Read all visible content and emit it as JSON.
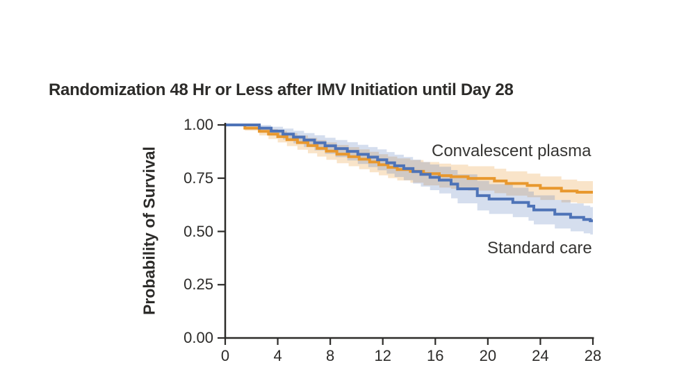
{
  "chart_data": {
    "type": "line",
    "variant": "kaplan_meier_step_curves_with_confidence_bands",
    "title": "Randomization 48 Hr or Less after IMV Initiation until Day 28",
    "ylabel": "Probability of Survival",
    "xlabel": "",
    "xlim": [
      0,
      28
    ],
    "ylim": [
      0,
      1
    ],
    "grid": false,
    "legend_position": "inline annotations next to curves",
    "xticks": {
      "values": [
        0,
        4,
        8,
        12,
        16,
        20,
        24,
        28
      ],
      "labels": [
        "0",
        "4",
        "8",
        "12",
        "16",
        "20",
        "24",
        "28"
      ]
    },
    "yticks": {
      "values": [
        1.0,
        0.75,
        0.5,
        0.25,
        0.0
      ],
      "labels": [
        "1.00",
        "0.75",
        "0.50",
        "0.25",
        "0.00"
      ]
    },
    "axis_color": "#2c2b29",
    "series": [
      {
        "name": "Convalescent plasma",
        "line_color": "#E8982E",
        "band_color": "rgba(232,152,46,0.26)",
        "end_value": 0.684,
        "steps": [
          [
            0,
            1.0
          ],
          [
            1.5,
            0.985
          ],
          [
            2.6,
            0.97
          ],
          [
            3.3,
            0.957
          ],
          [
            4.0,
            0.945
          ],
          [
            4.7,
            0.931
          ],
          [
            5.5,
            0.917
          ],
          [
            6.3,
            0.903
          ],
          [
            7.0,
            0.89
          ],
          [
            7.7,
            0.877
          ],
          [
            8.5,
            0.863
          ],
          [
            9.4,
            0.851
          ],
          [
            10.2,
            0.839
          ],
          [
            11.0,
            0.826
          ],
          [
            11.7,
            0.813
          ],
          [
            12.4,
            0.801
          ],
          [
            13.1,
            0.791
          ],
          [
            14.1,
            0.782
          ],
          [
            15.1,
            0.771
          ],
          [
            16.3,
            0.762
          ],
          [
            17.2,
            0.757
          ],
          [
            18.5,
            0.749
          ],
          [
            20.5,
            0.737
          ],
          [
            21.4,
            0.725
          ],
          [
            23.0,
            0.716
          ],
          [
            24.0,
            0.703
          ],
          [
            25.6,
            0.69
          ],
          [
            26.8,
            0.684
          ]
        ],
        "ci_halfwidth": [
          [
            0,
            0.003
          ],
          [
            1.5,
            0.012
          ],
          [
            3,
            0.022
          ],
          [
            5,
            0.032
          ],
          [
            8,
            0.042
          ],
          [
            12,
            0.05
          ],
          [
            16,
            0.056
          ],
          [
            20,
            0.058
          ],
          [
            24,
            0.055
          ],
          [
            28,
            0.051
          ]
        ]
      },
      {
        "name": "Standard care",
        "line_color": "#4E73B7",
        "band_color": "rgba(78,115,183,0.24)",
        "end_value": 0.55,
        "steps": [
          [
            0,
            1.0
          ],
          [
            2.6,
            0.985
          ],
          [
            3.5,
            0.971
          ],
          [
            4.4,
            0.957
          ],
          [
            5.2,
            0.943
          ],
          [
            6.0,
            0.929
          ],
          [
            6.8,
            0.916
          ],
          [
            7.6,
            0.902
          ],
          [
            8.4,
            0.889
          ],
          [
            9.3,
            0.876
          ],
          [
            10.1,
            0.862
          ],
          [
            10.9,
            0.849
          ],
          [
            11.6,
            0.836
          ],
          [
            12.3,
            0.822
          ],
          [
            12.9,
            0.808
          ],
          [
            13.6,
            0.795
          ],
          [
            14.3,
            0.781
          ],
          [
            14.9,
            0.768
          ],
          [
            15.6,
            0.754
          ],
          [
            16.3,
            0.741
          ],
          [
            17.2,
            0.722
          ],
          [
            17.7,
            0.7
          ],
          [
            19.2,
            0.668
          ],
          [
            20.1,
            0.652
          ],
          [
            21.9,
            0.636
          ],
          [
            23.1,
            0.619
          ],
          [
            23.5,
            0.601
          ],
          [
            25.1,
            0.581
          ],
          [
            26.3,
            0.566
          ],
          [
            27.3,
            0.556
          ],
          [
            27.8,
            0.55
          ]
        ],
        "ci_halfwidth": [
          [
            0,
            0.003
          ],
          [
            2.6,
            0.014
          ],
          [
            4,
            0.024
          ],
          [
            6,
            0.033
          ],
          [
            9,
            0.042
          ],
          [
            12,
            0.05
          ],
          [
            15,
            0.058
          ],
          [
            17.7,
            0.068
          ],
          [
            20,
            0.07
          ],
          [
            24,
            0.068
          ],
          [
            28,
            0.064
          ]
        ]
      }
    ]
  }
}
